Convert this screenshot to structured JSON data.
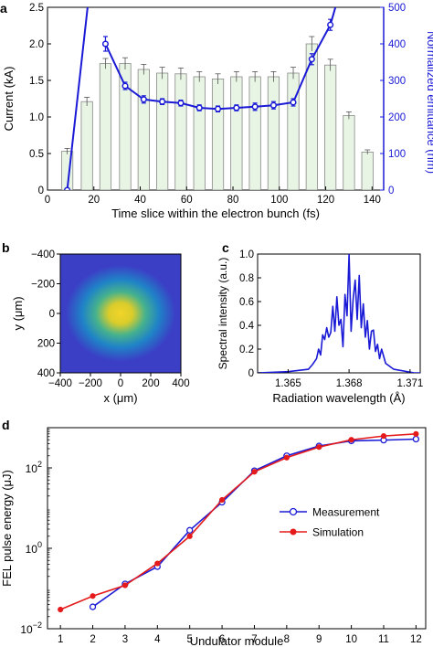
{
  "chart_data": [
    {
      "panel": "a",
      "type": "bar",
      "xlabel": "Time slice within the electron bunch (fs)",
      "ylabel": "Current (kA)",
      "y2label": "Normalized emittance (nm)",
      "xlim": [
        0,
        145
      ],
      "ylim": [
        0,
        2.5
      ],
      "y2lim": [
        0,
        500
      ],
      "xticks": [
        "0",
        "20",
        "40",
        "60",
        "80",
        "100",
        "120",
        "140"
      ],
      "yticks": [
        "0",
        "0.5",
        "1.0",
        "1.5",
        "2.0",
        "2.5"
      ],
      "y2ticks": [
        "0",
        "100",
        "200",
        "300",
        "400",
        "500"
      ],
      "colors": {
        "bars": "#e8f5e5",
        "bar_edge": "#888888",
        "emittance": "#1a1ad6",
        "right_axis": "#1a1ad6"
      },
      "bars": {
        "x": [
          8.5,
          17,
          25,
          33.5,
          41.5,
          49.5,
          57.5,
          65.5,
          73.5,
          81.5,
          89.5,
          97.5,
          106,
          114,
          122,
          130,
          138
        ],
        "values": [
          0.53,
          1.21,
          1.73,
          1.73,
          1.65,
          1.6,
          1.59,
          1.55,
          1.52,
          1.55,
          1.55,
          1.55,
          1.6,
          2.0,
          1.71,
          1.02,
          0.52
        ],
        "errors": [
          0.04,
          0.06,
          0.07,
          0.08,
          0.07,
          0.08,
          0.08,
          0.07,
          0.07,
          0.07,
          0.07,
          0.07,
          0.08,
          0.1,
          0.08,
          0.05,
          0.03
        ]
      },
      "emittance": {
        "x": [
          8.5,
          25,
          33.5,
          41.5,
          49.5,
          57.5,
          65.5,
          73.5,
          81.5,
          89.5,
          97.5,
          106,
          114,
          122
        ],
        "values": [
          0,
          400,
          285,
          248,
          242,
          238,
          225,
          222,
          225,
          228,
          232,
          240,
          358,
          452
        ],
        "errors": [
          0,
          20,
          10,
          10,
          8,
          8,
          8,
          8,
          8,
          10,
          10,
          10,
          15,
          15
        ],
        "peak_x": 18,
        "peak_value": 540,
        "top_x": 126,
        "top_value": 540
      }
    },
    {
      "panel": "b",
      "type": "heatmap",
      "xlabel": "x (μm)",
      "ylabel": "y (μm)",
      "xlim": [
        -400,
        400
      ],
      "ylim": [
        -400,
        400
      ],
      "xticks": [
        "−400",
        "−200",
        "0",
        "200",
        "400"
      ],
      "yticks": [
        "−400",
        "−200",
        "0",
        "200",
        "400"
      ],
      "y_inverted": true,
      "spot": {
        "cx": 0,
        "cy": 0,
        "sx": 140,
        "sy": 120
      },
      "colors": {
        "background": "#3b3fc6",
        "mid": "#21a3a2",
        "core": "#f4d024"
      }
    },
    {
      "panel": "c",
      "type": "line",
      "xlabel": "Radiation wavelength (Å)",
      "ylabel": "Spectral intensity (a.u.)",
      "xlim": [
        1.3635,
        1.3715
      ],
      "ylim": [
        0,
        1.0
      ],
      "xticks": [
        "1.365",
        "1.368",
        "1.371"
      ],
      "xtick_values": [
        1.365,
        1.368,
        1.371
      ],
      "yticks": [
        "0",
        "0.2",
        "0.4",
        "0.6",
        "0.8",
        "1.0"
      ],
      "colors": {
        "line": "#1a1ad6"
      },
      "x": [
        1.3635,
        1.365,
        1.366,
        1.3662,
        1.3664,
        1.3665,
        1.3666,
        1.3667,
        1.3668,
        1.3669,
        1.367,
        1.3671,
        1.3672,
        1.3673,
        1.3674,
        1.3675,
        1.3676,
        1.3677,
        1.3678,
        1.3679,
        1.368,
        1.3681,
        1.3682,
        1.3683,
        1.3684,
        1.3685,
        1.3686,
        1.3687,
        1.3688,
        1.3689,
        1.369,
        1.3691,
        1.3692,
        1.3693,
        1.3694,
        1.3695,
        1.3696,
        1.3698,
        1.3702,
        1.3712,
        1.3715
      ],
      "values": [
        0.0,
        0.01,
        0.03,
        0.07,
        0.12,
        0.2,
        0.15,
        0.32,
        0.28,
        0.38,
        0.3,
        0.34,
        0.56,
        0.35,
        0.64,
        0.4,
        0.45,
        0.22,
        0.66,
        0.48,
        1.0,
        0.35,
        0.62,
        0.78,
        0.45,
        0.82,
        0.38,
        0.58,
        0.3,
        0.44,
        0.2,
        0.35,
        0.36,
        0.18,
        0.24,
        0.12,
        0.2,
        0.08,
        0.03,
        0.0,
        0.0
      ]
    },
    {
      "panel": "d",
      "type": "line",
      "xlabel": "Undulator module",
      "ylabel": "FEL pulse energy (μJ)",
      "xlim": [
        0.6,
        12.3
      ],
      "ylim_log10": [
        -2,
        3
      ],
      "log_scale_y": true,
      "xticks": [
        "1",
        "2",
        "3",
        "4",
        "5",
        "6",
        "7",
        "8",
        "9",
        "10",
        "11",
        "12"
      ],
      "ytick_values": [
        -2,
        0,
        2
      ],
      "x": [
        1,
        2,
        3,
        4,
        5,
        6,
        7,
        8,
        9,
        10,
        11,
        12
      ],
      "legend_position": "center-right",
      "series": [
        {
          "name": "Measurement",
          "color": "#1a1ad6",
          "marker": "open-circle",
          "values": [
            null,
            0.035,
            0.13,
            0.35,
            2.8,
            14,
            85,
            200,
            350,
            470,
            490,
            520
          ]
        },
        {
          "name": "Simulation",
          "color": "#e51a1a",
          "marker": "filled-circle",
          "values": [
            0.03,
            0.065,
            0.12,
            0.42,
            2.0,
            16,
            80,
            180,
            330,
            500,
            620,
            700
          ]
        }
      ]
    }
  ],
  "labels": {
    "a": "a",
    "b": "b",
    "c": "c",
    "d": "d",
    "ten": "10"
  }
}
